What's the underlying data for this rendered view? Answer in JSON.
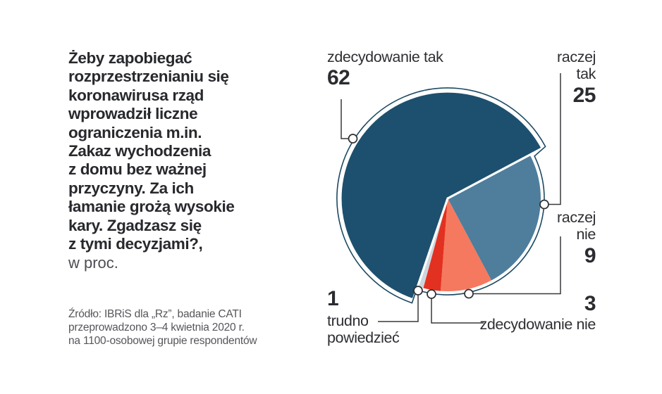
{
  "question": {
    "text": "Żeby zapobiegać\nrozprzestrzenianiu się\nkoronawirusa rząd\nwprowadził liczne\nograniczenia m.in.\nZakaz wychodzenia\nz domu bez ważnej\nprzyczyny. Za ich\nłamanie grożą wysokie\nkary. Zgadzasz się\nz tymi decyzjami?,",
    "unit": "w proc."
  },
  "source": "Źródło: IBRiS dla „Rz”, badanie CATI\nprzeprowadzono 3–4 kwietnia 2020 r.\nna 1100-osobowej grupie respondentów",
  "chart_data": {
    "type": "pie",
    "unit": "percent",
    "total": 100,
    "start_angle_deg": 28,
    "direction": "clockwise",
    "slices": [
      {
        "label": "zdecydowanie tak",
        "value": 62,
        "color": "#1d506e",
        "emphasized": true
      },
      {
        "label": "raczej tak",
        "value": 25,
        "color": "#4e7e9c",
        "emphasized": false
      },
      {
        "label": "raczej nie",
        "value": 9,
        "color": "#f5795e",
        "emphasized": false
      },
      {
        "label": "zdecydowanie nie",
        "value": 3,
        "color": "#e23120",
        "emphasized": false
      },
      {
        "label": "trudno powiedzieć",
        "value": 1,
        "color": "#ccd6dc",
        "emphasized": false
      }
    ],
    "outline_color": "#1c4962",
    "callout_line_color": "#38393d",
    "marker_fill": "#ffffff",
    "marker_stroke": "#2f3033"
  }
}
